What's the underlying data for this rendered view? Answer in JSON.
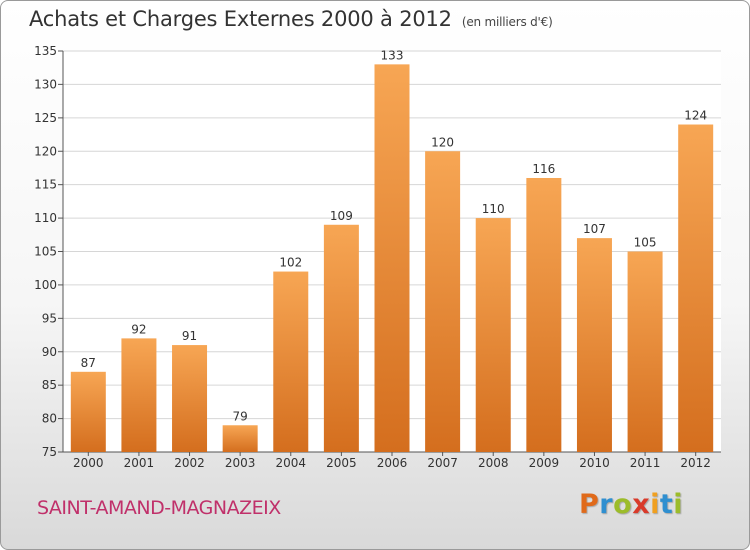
{
  "header": {
    "title": "Achats et Charges Externes 2000 à 2012",
    "unit": "(en milliers d'€)"
  },
  "footer": {
    "commune": "SAINT-AMAND-MAGNAZEIX",
    "brand": "Proxiti",
    "brand_letters": [
      {
        "ch": "P",
        "color": "#e06a1a"
      },
      {
        "ch": "r",
        "color": "#2f8fd0"
      },
      {
        "ch": "o",
        "color": "#9cbc2a"
      },
      {
        "ch": "x",
        "color": "#d93a2a"
      },
      {
        "ch": "i",
        "color": "#f0a020"
      },
      {
        "ch": "t",
        "color": "#2f8fd0"
      },
      {
        "ch": "i",
        "color": "#9cbc2a"
      }
    ]
  },
  "colors": {
    "bar_light": "#f7a654",
    "bar_dark": "#d46e1e",
    "commune": "#c0306a"
  },
  "chart_data": {
    "type": "bar",
    "categories": [
      "2000",
      "2001",
      "2002",
      "2003",
      "2004",
      "2005",
      "2006",
      "2007",
      "2008",
      "2009",
      "2010",
      "2011",
      "2012"
    ],
    "values": [
      87,
      92,
      91,
      79,
      102,
      109,
      133,
      120,
      110,
      116,
      107,
      105,
      124
    ],
    "ylim": [
      75,
      135
    ],
    "yticks": [
      75,
      80,
      85,
      90,
      95,
      100,
      105,
      110,
      115,
      120,
      125,
      130,
      135
    ],
    "grid": true
  }
}
